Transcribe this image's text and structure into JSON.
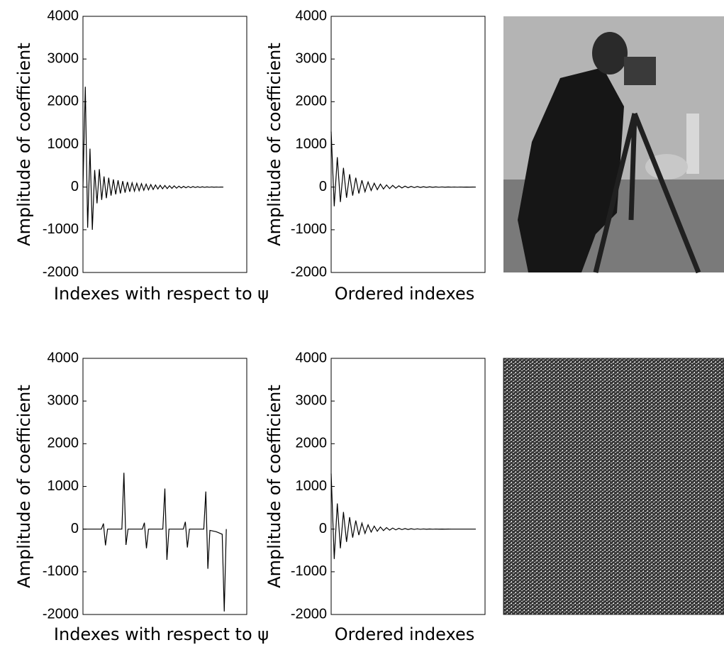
{
  "chart_data": [
    {
      "type": "line",
      "ylabel": "Amplitude of coefficient",
      "xlabel": "Indexes with respect to ψ",
      "color": "#000000",
      "xlim": [
        0,
        70
      ],
      "ylim": [
        -2000,
        4000
      ],
      "yticks": [
        -2000,
        -1000,
        0,
        1000,
        2000,
        3000,
        4000
      ],
      "values": [
        0,
        2350,
        -950,
        900,
        -1000,
        400,
        -380,
        420,
        -300,
        250,
        -260,
        220,
        -200,
        180,
        -170,
        160,
        -150,
        140,
        -130,
        120,
        -110,
        100,
        -95,
        90,
        -85,
        80,
        -75,
        70,
        -65,
        60,
        -55,
        50,
        -45,
        42,
        -40,
        38,
        -35,
        32,
        -30,
        28,
        -25,
        22,
        -20,
        18,
        -16,
        15,
        -14,
        12,
        -10,
        9,
        -8,
        7,
        -6,
        5,
        -4,
        4,
        -3,
        2,
        -2,
        1,
        0
      ]
    },
    {
      "type": "line",
      "ylabel": "Amplitude of coefficient",
      "xlabel": "Ordered indexes",
      "color": "#000000",
      "xlim": [
        0,
        50
      ],
      "ylim": [
        -2000,
        4000
      ],
      "yticks": [
        -2000,
        -1000,
        0,
        1000,
        2000,
        3000,
        4000
      ],
      "values": [
        1300,
        -450,
        700,
        -350,
        450,
        -250,
        300,
        -200,
        220,
        -150,
        160,
        -110,
        120,
        -80,
        90,
        -60,
        70,
        -45,
        50,
        -35,
        40,
        -25,
        30,
        -20,
        22,
        -15,
        16,
        -12,
        12,
        -9,
        9,
        -7,
        7,
        -5,
        5,
        -4,
        4,
        -3,
        3,
        -2,
        2,
        -2,
        2,
        -1,
        1,
        -1,
        1,
        0
      ]
    },
    {
      "type": "line",
      "ylabel": "Amplitude of coefficient",
      "xlabel": "Indexes with respect to ψ",
      "color": "#000000",
      "xlim": [
        0,
        80
      ],
      "ylim": [
        -2000,
        4000
      ],
      "yticks": [
        -2000,
        -1000,
        0,
        1000,
        2000,
        3000,
        4000
      ],
      "values": [
        0,
        0,
        0,
        0,
        0,
        0,
        0,
        0,
        0,
        0,
        130,
        -380,
        0,
        0,
        0,
        0,
        0,
        0,
        0,
        0,
        1320,
        -370,
        0,
        0,
        0,
        0,
        0,
        0,
        0,
        0,
        150,
        -450,
        0,
        0,
        0,
        0,
        0,
        0,
        0,
        0,
        950,
        -720,
        0,
        0,
        0,
        0,
        0,
        0,
        0,
        0,
        170,
        -430,
        0,
        0,
        0,
        0,
        0,
        0,
        0,
        0,
        880,
        -930,
        -30,
        -40,
        -50,
        -60,
        -80,
        -100,
        -120,
        -1930,
        0
      ]
    },
    {
      "type": "line",
      "ylabel": "Amplitude of coefficient",
      "xlabel": "Ordered indexes",
      "color": "#000000",
      "xlim": [
        0,
        50
      ],
      "ylim": [
        -2000,
        4000
      ],
      "yticks": [
        -2000,
        -1000,
        0,
        1000,
        2000,
        3000,
        4000
      ],
      "values": [
        1300,
        -700,
        600,
        -450,
        400,
        -300,
        280,
        -200,
        200,
        -140,
        140,
        -100,
        100,
        -70,
        70,
        -50,
        50,
        -35,
        35,
        -25,
        25,
        -18,
        18,
        -12,
        12,
        -9,
        9,
        -6,
        6,
        -4,
        4,
        -3,
        3,
        -2,
        2,
        -1,
        1,
        -1,
        1,
        0,
        0,
        0,
        0,
        0,
        0,
        0,
        0,
        0
      ]
    }
  ]
}
